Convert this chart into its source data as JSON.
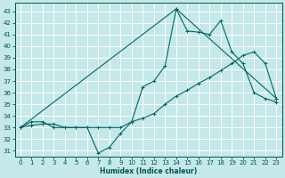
{
  "title": "",
  "xlabel": "Humidex (Indice chaleur)",
  "bg_color": "#c5e8e8",
  "grid_color": "#ffffff",
  "line_color": "#006666",
  "xlim": [
    -0.5,
    23.5
  ],
  "ylim": [
    30.5,
    43.7
  ],
  "yticks": [
    31,
    32,
    33,
    34,
    35,
    36,
    37,
    38,
    39,
    40,
    41,
    42,
    43
  ],
  "xticks": [
    0,
    1,
    2,
    3,
    4,
    5,
    6,
    7,
    8,
    9,
    10,
    11,
    12,
    13,
    14,
    15,
    16,
    17,
    18,
    19,
    20,
    21,
    22,
    23
  ],
  "series": [
    {
      "x": [
        0,
        1,
        2,
        3,
        4,
        5,
        6,
        7,
        8,
        9,
        10,
        11,
        12,
        13,
        14,
        15,
        16,
        17,
        18,
        19,
        20,
        21,
        22,
        23
      ],
      "y": [
        33.0,
        33.5,
        33.5,
        33.0,
        33.0,
        33.0,
        33.0,
        30.8,
        31.3,
        32.5,
        33.5,
        36.5,
        37.0,
        38.3,
        43.2,
        41.3,
        41.2,
        41.0,
        42.2,
        39.5,
        38.5,
        36.0,
        35.5,
        35.2
      ]
    },
    {
      "x": [
        0,
        1,
        2,
        3,
        4,
        5,
        6,
        7,
        8,
        9,
        10,
        11,
        12,
        13,
        14,
        15,
        16,
        17,
        18,
        19,
        20,
        21,
        22,
        23
      ],
      "y": [
        33.0,
        33.2,
        33.3,
        33.3,
        33.0,
        33.0,
        33.0,
        33.0,
        33.0,
        33.0,
        33.5,
        33.8,
        34.2,
        35.0,
        35.7,
        36.2,
        36.8,
        37.3,
        37.9,
        38.5,
        39.2,
        39.5,
        38.5,
        35.5
      ]
    },
    {
      "x": [
        0,
        14,
        23
      ],
      "y": [
        33.0,
        43.2,
        35.5
      ]
    }
  ]
}
